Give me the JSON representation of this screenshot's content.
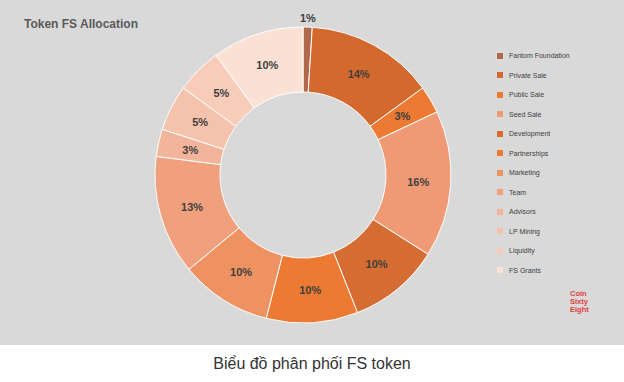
{
  "chart_data": {
    "type": "donut",
    "title": "Token FS Allocation",
    "caption": "Biểu đồ phân phối FS token",
    "watermark": "Coin Sixty Eight",
    "categories": [
      "Fantom Foundation",
      "Private Sale",
      "Public Sale",
      "Seed Sale",
      "Development",
      "Partnerships",
      "Marketing",
      "Team",
      "Advisors",
      "LP Mining",
      "Liquidity",
      "FS Grants"
    ],
    "values": [
      1,
      14,
      3,
      16,
      10,
      10,
      10,
      13,
      3,
      5,
      5,
      10
    ],
    "value_labels": [
      "1%",
      "14%",
      "3%",
      "16%",
      "10%",
      "10%",
      "10%",
      "13%",
      "3%",
      "5%",
      "5%",
      "10%"
    ],
    "colors": [
      "#b0694a",
      "#d4692f",
      "#ec7a32",
      "#f09a75",
      "#d56d33",
      "#ec7a32",
      "#ef9262",
      "#f0a07c",
      "#f2b49a",
      "#f5c2ab",
      "#f7ccb8",
      "#fbe1d3"
    ],
    "legend": "right",
    "data_labels": true
  }
}
